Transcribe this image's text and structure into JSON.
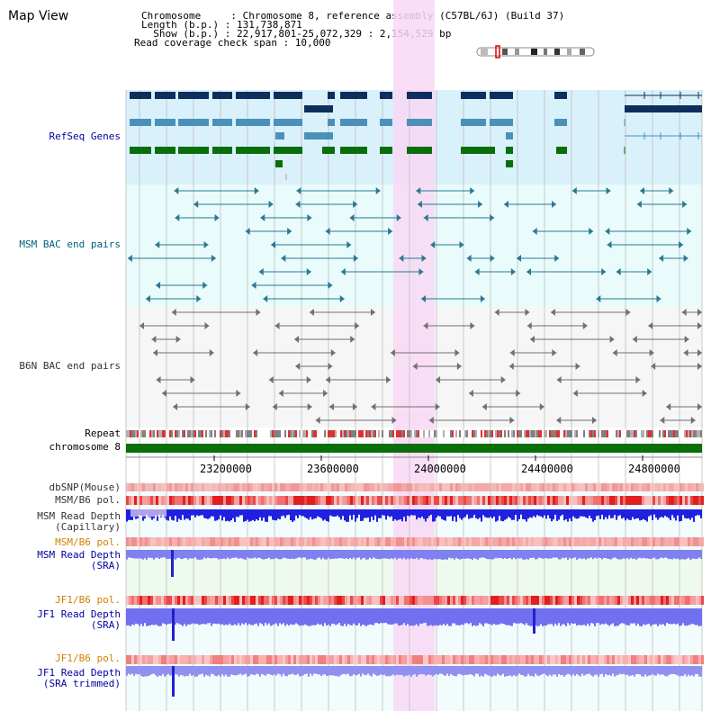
{
  "window": {
    "title": "Map View"
  },
  "header": {
    "chromosome_line": "Chromosome     : Chromosome 8, reference assembly (C57BL/6J) (Build 37)",
    "length_line": "Length (b.p.) : 131,738,871",
    "show_line": "  Show (b.p.) : 22,917,801-25,072,329 : 2,154,529 bp",
    "coverage_line": "Read coverage check span : 10,000"
  },
  "tracks": {
    "refseq": "RefSeq Genes",
    "msm_bac": "MSM BAC end pairs",
    "b6n_bac": "B6N BAC end pairs",
    "repeat": "Repeat",
    "chromosome": "chromosome 8",
    "dbsnp": "dbSNP(Mouse)",
    "msm_b6_pol_1": "MSM/B6 pol.",
    "msm_read_depth_capillary_1": "MSM Read Depth",
    "msm_read_depth_capillary_2": "(Capillary)",
    "msm_b6_pol_2": "MSM/B6 pol.",
    "msm_read_depth_sra_1": "MSM Read Depth",
    "msm_read_depth_sra_2": "(SRA)",
    "jf1_b6_pol_1": "JF1/B6 pol.",
    "jf1_read_depth_sra_1": "JF1 Read Depth",
    "jf1_read_depth_sra_2": "(SRA)",
    "jf1_b6_pol_2": "JF1/B6 pol.",
    "jf1_read_depth_trim_1": "JF1 Read Depth",
    "jf1_read_depth_trim_2": "(SRA trimmed)"
  },
  "axis": {
    "ticks": [
      "23200000",
      "23600000",
      "24000000",
      "24400000",
      "24800000"
    ]
  },
  "colors": {
    "highlight": "#f8d8f4",
    "refseq_bg": "#d9f1fb",
    "msm_bac_bg": "#e9fbfb",
    "b6n_bg": "#f6f6f6",
    "gene_navy": "#0e2e5e",
    "gene_teal": "#4a90b8",
    "gene_green": "#0a6e0a",
    "chrom_green": "#0a6e0a",
    "label_blue": "#0000a0",
    "label_teal": "#006080",
    "label_orange": "#d08000",
    "label_grey": "#333333"
  }
}
